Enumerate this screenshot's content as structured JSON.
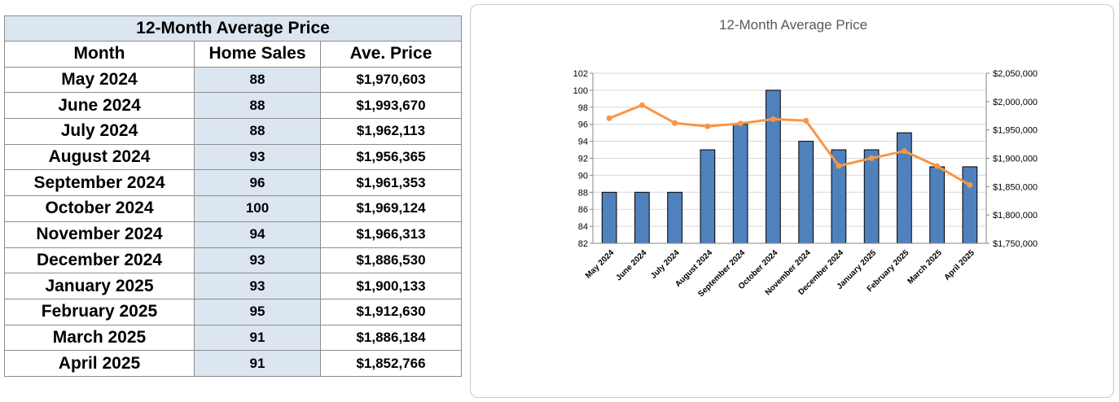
{
  "table": {
    "title": "12-Month Average Price",
    "headers": [
      "Month",
      "Home Sales",
      "Ave. Price"
    ],
    "rows": [
      {
        "month": "May 2024",
        "sales": "88",
        "price": "$1,970,603"
      },
      {
        "month": "June 2024",
        "sales": "88",
        "price": "$1,993,670"
      },
      {
        "month": "July 2024",
        "sales": "88",
        "price": "$1,962,113"
      },
      {
        "month": "August 2024",
        "sales": "93",
        "price": "$1,956,365"
      },
      {
        "month": "September 2024",
        "sales": "96",
        "price": "$1,961,353"
      },
      {
        "month": "October 2024",
        "sales": "100",
        "price": "$1,969,124"
      },
      {
        "month": "November 2024",
        "sales": "94",
        "price": "$1,966,313"
      },
      {
        "month": "December 2024",
        "sales": "93",
        "price": "$1,886,530"
      },
      {
        "month": "January 2025",
        "sales": "93",
        "price": "$1,900,133"
      },
      {
        "month": "February 2025",
        "sales": "95",
        "price": "$1,912,630"
      },
      {
        "month": "March 2025",
        "sales": "91",
        "price": "$1,886,184"
      },
      {
        "month": "April 2025",
        "sales": "91",
        "price": "$1,852,766"
      }
    ]
  },
  "chart_data": {
    "type": "bar",
    "title": "12-Month Average Price",
    "categories": [
      "May 2024",
      "June 2024",
      "July 2024",
      "August 2024",
      "September 2024",
      "October 2024",
      "November 2024",
      "December 2024",
      "January 2025",
      "February 2025",
      "March 2025",
      "April 2025"
    ],
    "series": [
      {
        "type": "bar",
        "axis": "left",
        "values": [
          88,
          88,
          88,
          93,
          96,
          100,
          94,
          93,
          93,
          95,
          91,
          91
        ],
        "color": "#4f81bd"
      },
      {
        "type": "line",
        "axis": "right",
        "values": [
          1970603,
          1993670,
          1962113,
          1956365,
          1961353,
          1969124,
          1966313,
          1886530,
          1900133,
          1912630,
          1886184,
          1852766
        ],
        "color": "#f79646"
      }
    ],
    "y_left": {
      "min": 82,
      "max": 102,
      "step": 2,
      "ticks": [
        "82",
        "84",
        "86",
        "88",
        "90",
        "92",
        "94",
        "96",
        "98",
        "100",
        "102"
      ]
    },
    "y_right": {
      "min": 1750000,
      "max": 2050000,
      "step": 50000,
      "ticks": [
        "$1,750,000",
        "$1,800,000",
        "$1,850,000",
        "$1,900,000",
        "$1,950,000",
        "$2,000,000",
        "$2,050,000"
      ]
    },
    "grid": true,
    "legend": "none",
    "xlabel": "",
    "ylabel": ""
  }
}
